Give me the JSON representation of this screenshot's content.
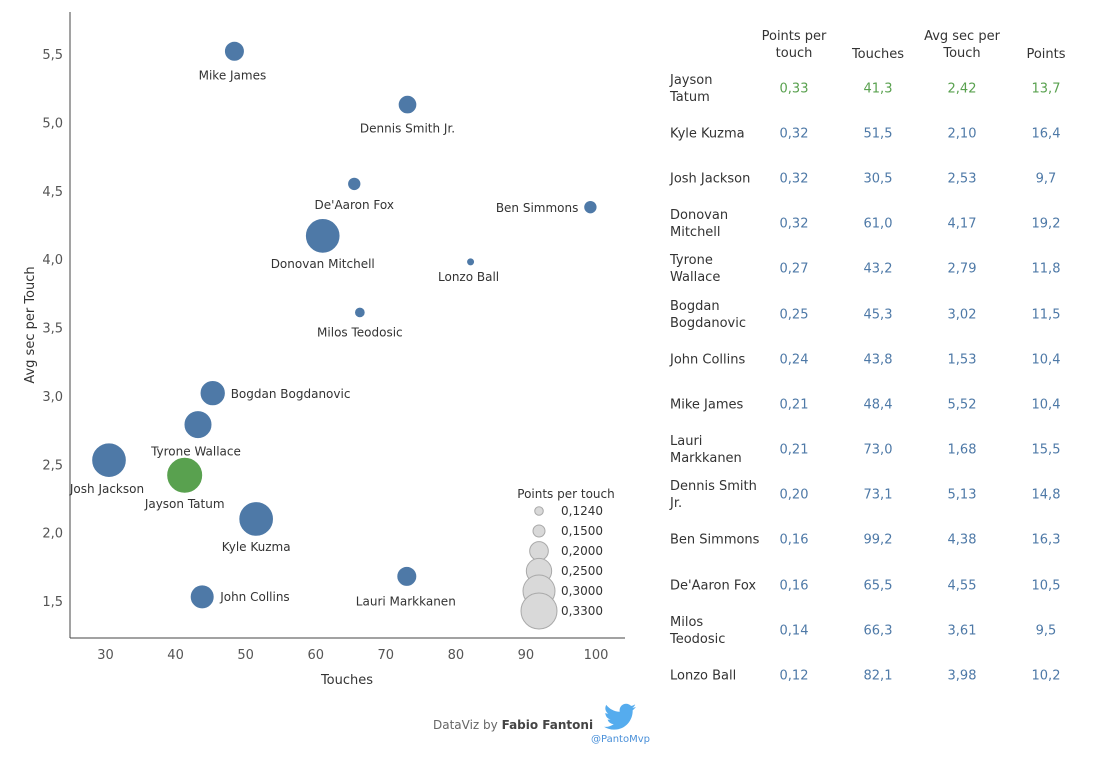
{
  "chart_data": {
    "type": "scatter",
    "xlabel": "Touches",
    "ylabel": "Avg sec per Touch",
    "xlim": [
      25,
      104
    ],
    "ylim": [
      1.27,
      5.85
    ],
    "xticks": [
      "30",
      "40",
      "50",
      "60",
      "70",
      "80",
      "90",
      "100"
    ],
    "yticks": [
      "1,5",
      "2,0",
      "2,5",
      "3,0",
      "3,5",
      "4,0",
      "4,5",
      "5,0",
      "5,5"
    ],
    "size_field": "Points per touch",
    "highlight_color": "#59a14f",
    "default_color": "#4e79a7",
    "points": [
      {
        "name": "Jayson Tatum",
        "x": 41.3,
        "y": 2.42,
        "ppt": 0.33,
        "highlight": true
      },
      {
        "name": "Kyle Kuzma",
        "x": 51.5,
        "y": 2.1,
        "ppt": 0.32
      },
      {
        "name": "Josh Jackson",
        "x": 30.5,
        "y": 2.53,
        "ppt": 0.32
      },
      {
        "name": "Donovan Mitchell",
        "x": 61.0,
        "y": 4.17,
        "ppt": 0.32
      },
      {
        "name": "Tyrone Wallace",
        "x": 43.2,
        "y": 2.79,
        "ppt": 0.27
      },
      {
        "name": "Bogdan Bogdanovic",
        "x": 45.3,
        "y": 3.02,
        "ppt": 0.25
      },
      {
        "name": "John Collins",
        "x": 43.8,
        "y": 1.53,
        "ppt": 0.24
      },
      {
        "name": "Mike James",
        "x": 48.4,
        "y": 5.52,
        "ppt": 0.21
      },
      {
        "name": "Lauri Markkanen",
        "x": 73.0,
        "y": 1.68,
        "ppt": 0.21
      },
      {
        "name": "Dennis Smith Jr.",
        "x": 73.1,
        "y": 5.13,
        "ppt": 0.2
      },
      {
        "name": "Ben Simmons",
        "x": 99.2,
        "y": 4.38,
        "ppt": 0.16
      },
      {
        "name": "De'Aaron Fox",
        "x": 65.5,
        "y": 4.55,
        "ppt": 0.16
      },
      {
        "name": "Milos Teodosic",
        "x": 66.3,
        "y": 3.61,
        "ppt": 0.14
      },
      {
        "name": "Lonzo Ball",
        "x": 82.1,
        "y": 3.98,
        "ppt": 0.12
      }
    ],
    "legend": {
      "title": "Points per touch",
      "placement": "bottom-right",
      "items": [
        {
          "label": "0,1240",
          "value": 0.124
        },
        {
          "label": "0,1500",
          "value": 0.15
        },
        {
          "label": "0,2000",
          "value": 0.2
        },
        {
          "label": "0,2500",
          "value": 0.25
        },
        {
          "label": "0,3000",
          "value": 0.3
        },
        {
          "label": "0,3300",
          "value": 0.33
        }
      ]
    }
  },
  "table": {
    "headers": {
      "ppt": [
        "Points per",
        "touch"
      ],
      "touches": "Touches",
      "avgsec": [
        "Avg sec per",
        "Touch"
      ],
      "points": "Points"
    },
    "rows": [
      {
        "name": [
          "Jayson",
          "Tatum"
        ],
        "ppt": "0,33",
        "touches": "41,3",
        "avgsec": "2,42",
        "points": "13,7",
        "highlight": true
      },
      {
        "name": [
          "Kyle Kuzma"
        ],
        "ppt": "0,32",
        "touches": "51,5",
        "avgsec": "2,10",
        "points": "16,4"
      },
      {
        "name": [
          "Josh Jackson"
        ],
        "ppt": "0,32",
        "touches": "30,5",
        "avgsec": "2,53",
        "points": "9,7"
      },
      {
        "name": [
          "Donovan",
          "Mitchell"
        ],
        "ppt": "0,32",
        "touches": "61,0",
        "avgsec": "4,17",
        "points": "19,2"
      },
      {
        "name": [
          "Tyrone",
          "Wallace"
        ],
        "ppt": "0,27",
        "touches": "43,2",
        "avgsec": "2,79",
        "points": "11,8"
      },
      {
        "name": [
          "Bogdan",
          "Bogdanovic"
        ],
        "ppt": "0,25",
        "touches": "45,3",
        "avgsec": "3,02",
        "points": "11,5"
      },
      {
        "name": [
          "John Collins"
        ],
        "ppt": "0,24",
        "touches": "43,8",
        "avgsec": "1,53",
        "points": "10,4"
      },
      {
        "name": [
          "Mike James"
        ],
        "ppt": "0,21",
        "touches": "48,4",
        "avgsec": "5,52",
        "points": "10,4"
      },
      {
        "name": [
          "Lauri",
          "Markkanen"
        ],
        "ppt": "0,21",
        "touches": "73,0",
        "avgsec": "1,68",
        "points": "15,5"
      },
      {
        "name": [
          "Dennis Smith",
          "Jr."
        ],
        "ppt": "0,20",
        "touches": "73,1",
        "avgsec": "5,13",
        "points": "14,8"
      },
      {
        "name": [
          "Ben Simmons"
        ],
        "ppt": "0,16",
        "touches": "99,2",
        "avgsec": "4,38",
        "points": "16,3"
      },
      {
        "name": [
          "De'Aaron Fox"
        ],
        "ppt": "0,16",
        "touches": "65,5",
        "avgsec": "4,55",
        "points": "10,5"
      },
      {
        "name": [
          "Milos",
          "Teodosic"
        ],
        "ppt": "0,14",
        "touches": "66,3",
        "avgsec": "3,61",
        "points": "9,5"
      },
      {
        "name": [
          "Lonzo Ball"
        ],
        "ppt": "0,12",
        "touches": "82,1",
        "avgsec": "3,98",
        "points": "10,2"
      }
    ]
  },
  "footer": {
    "prefix": "DataViz by ",
    "author": "Fabio Fantoni",
    "handle": "@PantoMvp",
    "icon": "twitter-bird-icon",
    "icon_color": "#55acee"
  }
}
